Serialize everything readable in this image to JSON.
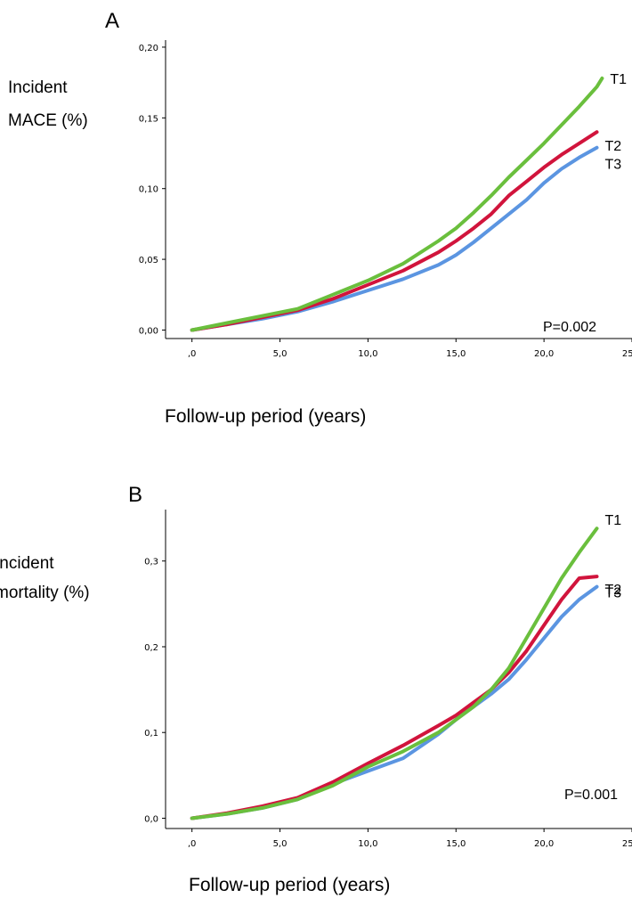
{
  "chart_data": [
    {
      "panel": "A",
      "type": "line",
      "ylabel_lines": [
        "Incident",
        "MACE (%)"
      ],
      "xlabel": "Follow-up period (years)",
      "xlim": [
        -1.5,
        25
      ],
      "ylim": [
        -0.006,
        0.205
      ],
      "xticks": [
        0,
        5,
        10,
        15,
        20,
        25
      ],
      "xtick_labels": [
        ",0",
        "5,0",
        "10,0",
        "15,0",
        "20,0",
        "25,0"
      ],
      "yticks": [
        0.0,
        0.05,
        0.1,
        0.15,
        0.2
      ],
      "ytick_labels": [
        "0,00",
        "0,05",
        "0,10",
        "0,15",
        "0,20"
      ],
      "annotation": "P=0.002",
      "series": [
        {
          "name": "T1",
          "color": "#6abf3d",
          "x": [
            0,
            2,
            4,
            6,
            8,
            10,
            12,
            14,
            15,
            16,
            17,
            18,
            19,
            20,
            21,
            22,
            22.5,
            23,
            23.3
          ],
          "y": [
            0.0,
            0.005,
            0.01,
            0.015,
            0.025,
            0.035,
            0.047,
            0.063,
            0.072,
            0.083,
            0.095,
            0.108,
            0.12,
            0.132,
            0.145,
            0.158,
            0.165,
            0.172,
            0.178
          ]
        },
        {
          "name": "T2",
          "color": "#d1143c",
          "x": [
            0,
            2,
            4,
            6,
            8,
            10,
            12,
            14,
            15,
            16,
            17,
            18,
            19,
            20,
            21,
            22,
            23
          ],
          "y": [
            0.0,
            0.004,
            0.009,
            0.014,
            0.022,
            0.032,
            0.042,
            0.055,
            0.063,
            0.072,
            0.082,
            0.095,
            0.105,
            0.115,
            0.124,
            0.132,
            0.14
          ]
        },
        {
          "name": "T3",
          "color": "#5b95e1",
          "x": [
            0,
            2,
            4,
            6,
            8,
            10,
            12,
            14,
            15,
            16,
            17,
            18,
            19,
            20,
            21,
            22,
            23
          ],
          "y": [
            0.0,
            0.004,
            0.008,
            0.013,
            0.02,
            0.028,
            0.036,
            0.046,
            0.053,
            0.062,
            0.072,
            0.082,
            0.092,
            0.104,
            0.114,
            0.122,
            0.129
          ]
        }
      ]
    },
    {
      "panel": "B",
      "type": "line",
      "ylabel_lines": [
        "Incident",
        "mortality (%)"
      ],
      "xlabel": "Follow-up period (years)",
      "xlim": [
        -1.5,
        25
      ],
      "ylim": [
        -0.012,
        0.36
      ],
      "xticks": [
        0,
        5,
        10,
        15,
        20,
        25
      ],
      "xtick_labels": [
        ",0",
        "5,0",
        "10,0",
        "15,0",
        "20,0",
        "25,0"
      ],
      "yticks": [
        0.0,
        0.1,
        0.2,
        0.3
      ],
      "ytick_labels": [
        "0,0",
        "0,1",
        "0,2",
        "0,3"
      ],
      "annotation": "P=0.001",
      "series": [
        {
          "name": "T1",
          "color": "#6abf3d",
          "x": [
            0,
            2,
            4,
            6,
            8,
            10,
            12,
            14,
            15,
            16,
            17,
            18,
            19,
            20,
            21,
            22,
            23
          ],
          "y": [
            0.0,
            0.005,
            0.012,
            0.022,
            0.038,
            0.06,
            0.078,
            0.1,
            0.115,
            0.13,
            0.15,
            0.175,
            0.21,
            0.245,
            0.28,
            0.31,
            0.338
          ]
        },
        {
          "name": "T2",
          "color": "#d1143c",
          "x": [
            0,
            2,
            4,
            6,
            8,
            10,
            12,
            14,
            15,
            16,
            17,
            18,
            19,
            20,
            21,
            22,
            23
          ],
          "y": [
            0.0,
            0.006,
            0.014,
            0.024,
            0.042,
            0.064,
            0.085,
            0.108,
            0.12,
            0.135,
            0.15,
            0.17,
            0.195,
            0.225,
            0.255,
            0.28,
            0.282
          ]
        },
        {
          "name": "T3",
          "color": "#5b95e1",
          "x": [
            0,
            2,
            4,
            6,
            8,
            10,
            12,
            14,
            15,
            16,
            17,
            18,
            19,
            20,
            21,
            22,
            23
          ],
          "y": [
            0.0,
            0.005,
            0.012,
            0.022,
            0.04,
            0.055,
            0.07,
            0.098,
            0.115,
            0.13,
            0.145,
            0.162,
            0.185,
            0.21,
            0.235,
            0.255,
            0.27
          ]
        }
      ]
    }
  ]
}
